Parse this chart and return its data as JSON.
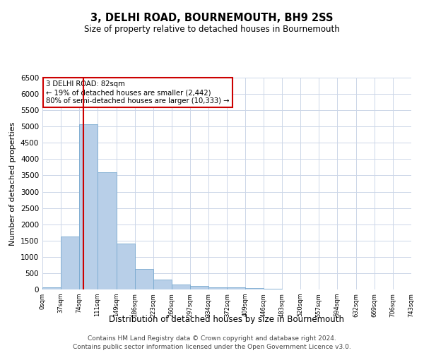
{
  "title": "3, DELHI ROAD, BOURNEMOUTH, BH9 2SS",
  "subtitle": "Size of property relative to detached houses in Bournemouth",
  "xlabel": "Distribution of detached houses by size in Bournemouth",
  "ylabel": "Number of detached properties",
  "footer_line1": "Contains HM Land Registry data © Crown copyright and database right 2024.",
  "footer_line2": "Contains public sector information licensed under the Open Government Licence v3.0.",
  "annotation_line1": "3 DELHI ROAD: 82sqm",
  "annotation_line2": "← 19% of detached houses are smaller (2,442)",
  "annotation_line3": "80% of semi-detached houses are larger (10,333) →",
  "property_sqm": 82,
  "bar_color": "#b8cfe8",
  "bar_edge_color": "#7aaad0",
  "red_line_color": "#cc0000",
  "annotation_box_color": "#cc0000",
  "background_color": "#ffffff",
  "grid_color": "#ccd6e8",
  "bin_edges": [
    0,
    37,
    74,
    111,
    149,
    186,
    223,
    260,
    297,
    334,
    372,
    409,
    446,
    483,
    520,
    557,
    594,
    632,
    669,
    706,
    743
  ],
  "bar_heights": [
    75,
    1635,
    5075,
    3600,
    1400,
    620,
    295,
    145,
    100,
    75,
    65,
    45,
    25,
    5,
    5,
    2,
    2,
    2,
    2,
    2
  ],
  "ylim": [
    0,
    6500
  ],
  "yticks": [
    0,
    500,
    1000,
    1500,
    2000,
    2500,
    3000,
    3500,
    4000,
    4500,
    5000,
    5500,
    6000,
    6500
  ]
}
